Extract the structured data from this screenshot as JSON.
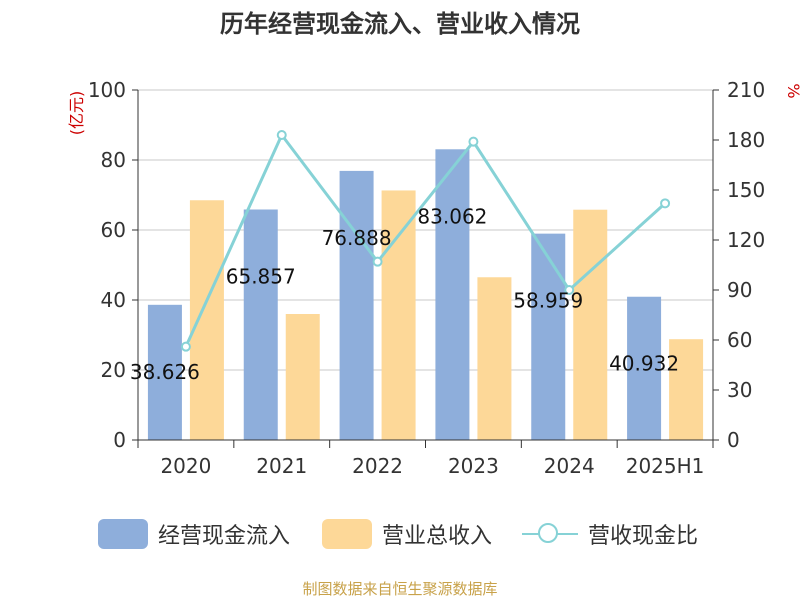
{
  "title": "历年经营现金流入、营业收入情况",
  "source": "制图数据来自恒生聚源数据库",
  "colors": {
    "inflow": "#8eaedb",
    "revenue": "#fdd898",
    "ratio": "#86d2d6",
    "axis_unit": "#cc0000",
    "grid": "#c8c8c8",
    "axis": "#333333"
  },
  "legend": [
    {
      "label": "经营现金流入",
      "type": "bar",
      "color": "#8eaedb"
    },
    {
      "label": "营业总收入",
      "type": "bar",
      "color": "#fdd898"
    },
    {
      "label": "营收现金比",
      "type": "line",
      "color": "#86d2d6"
    }
  ],
  "chart_data": {
    "type": "bar",
    "categories": [
      "2020",
      "2021",
      "2022",
      "2023",
      "2024",
      "2025H1"
    ],
    "series": [
      {
        "name": "经营现金流入",
        "type": "bar",
        "axis": "left",
        "values": [
          38.626,
          65.857,
          76.888,
          83.062,
          58.959,
          40.932
        ],
        "data_labels": [
          "38.626",
          "65.857",
          "76.888",
          "83.062",
          "58.959",
          "40.932"
        ]
      },
      {
        "name": "营业总收入",
        "type": "bar",
        "axis": "left",
        "values": [
          68.5,
          36.0,
          71.3,
          46.5,
          65.8,
          28.8
        ]
      },
      {
        "name": "营收现金比",
        "type": "line",
        "axis": "right",
        "values": [
          56,
          183,
          107,
          179,
          90,
          142
        ]
      }
    ],
    "y_left": {
      "label": "(亿元)",
      "min": 0,
      "max": 100,
      "ticks": [
        "0",
        "20",
        "40",
        "60",
        "80",
        "100"
      ]
    },
    "y_right": {
      "label": "%",
      "min": 0,
      "max": 210,
      "ticks": [
        "0",
        "30",
        "60",
        "90",
        "120",
        "150",
        "180",
        "210"
      ]
    },
    "grid": true,
    "legend_position": "bottom"
  }
}
